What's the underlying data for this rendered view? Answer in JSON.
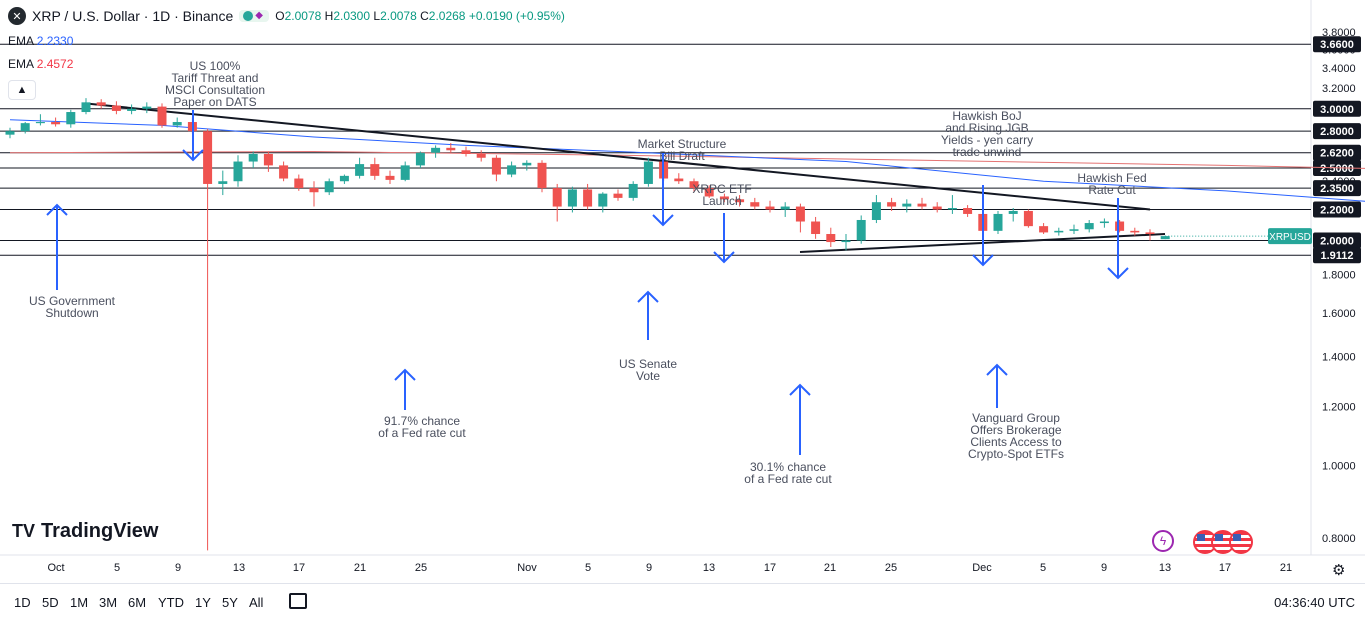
{
  "header": {
    "symbol_icon": "x-logo-icon",
    "title": "XRP / U.S. Dollar · 1D · Binance",
    "ohlc": {
      "o_label": "O",
      "o": "2.0078",
      "h_label": "H",
      "h": "2.0300",
      "l_label": "L",
      "l": "2.0078",
      "c_label": "C",
      "c": "2.0268",
      "change": "+0.0190 (+0.95%)"
    }
  },
  "indicators": [
    {
      "name": "EMA",
      "value": "2.2330",
      "color": "#2962ff"
    },
    {
      "name": "EMA",
      "value": "2.4572",
      "color": "#f23645"
    }
  ],
  "branding": {
    "logo_text": "TradingView"
  },
  "bottom_bar": {
    "ranges": [
      "1D",
      "5D",
      "1M",
      "3M",
      "6M",
      "YTD",
      "1Y",
      "5Y",
      "All"
    ],
    "time": "04:36:40 UTC"
  },
  "colors": {
    "up": "#26a69a",
    "down": "#ef5350",
    "ema_fast": "#2962ff",
    "ema_slow": "#e57373",
    "annotation": "#2962ff",
    "level": "#131722"
  },
  "chart_data": {
    "type": "candlestick",
    "symbol_label": "XRPUSD",
    "last_price": "2.0268",
    "y_axis": {
      "scale": "log",
      "ticks": [
        "3.8000",
        "3.6000",
        "3.4000",
        "3.2000",
        "3.0000",
        "2.8000",
        "2.6000",
        "2.4000",
        "2.2000",
        "2.0000",
        "1.8000",
        "1.6000",
        "1.4000",
        "1.2000",
        "1.0000",
        "0.8000"
      ],
      "ylim": [
        0.75,
        4.0
      ]
    },
    "x_axis": {
      "labels": [
        "Oct",
        "5",
        "9",
        "13",
        "17",
        "21",
        "25",
        "Nov",
        "5",
        "9",
        "13",
        "17",
        "21",
        "25",
        "Dec",
        "5",
        "9",
        "13",
        "17",
        "21"
      ]
    },
    "levels": [
      {
        "label": "3.6600",
        "value": 3.66
      },
      {
        "label": "3.0000",
        "value": 3.0
      },
      {
        "label": "2.8000",
        "value": 2.8
      },
      {
        "label": "2.6200",
        "value": 2.62
      },
      {
        "label": "2.5000",
        "value": 2.5
      },
      {
        "label": "2.3500",
        "value": 2.35
      },
      {
        "label": "2.2000",
        "value": 2.2
      },
      {
        "label": "2.0000",
        "value": 2.0
      },
      {
        "label": "1.9112",
        "value": 1.9112
      }
    ],
    "trendlines": [
      {
        "name": "descending",
        "from": {
          "x": "Oct 3",
          "y": 3.05
        },
        "to": {
          "x": "Dec 11",
          "y": 2.2
        }
      },
      {
        "name": "ascending",
        "from": {
          "x": "Nov 19",
          "y": 1.93
        },
        "to": {
          "x": "Dec 13",
          "y": 2.04
        }
      }
    ],
    "ema_fast": [
      [
        0,
        2.9
      ],
      [
        10,
        2.85
      ],
      [
        20,
        2.75
      ],
      [
        30,
        2.68
      ],
      [
        40,
        2.63
      ],
      [
        55,
        2.55
      ],
      [
        68,
        2.4
      ],
      [
        80,
        2.33
      ],
      [
        90,
        2.25
      ],
      [
        100,
        2.2
      ],
      [
        111,
        2.18
      ]
    ],
    "ema_slow": [
      [
        0,
        2.62
      ],
      [
        20,
        2.63
      ],
      [
        40,
        2.6
      ],
      [
        60,
        2.56
      ],
      [
        80,
        2.52
      ],
      [
        100,
        2.47
      ],
      [
        111,
        2.45
      ]
    ],
    "candles": [
      {
        "o": 2.77,
        "h": 2.83,
        "l": 2.74,
        "c": 2.8
      },
      {
        "o": 2.8,
        "h": 2.88,
        "l": 2.78,
        "c": 2.87
      },
      {
        "o": 2.87,
        "h": 2.95,
        "l": 2.85,
        "c": 2.88
      },
      {
        "o": 2.88,
        "h": 2.92,
        "l": 2.84,
        "c": 2.86
      },
      {
        "o": 2.86,
        "h": 2.99,
        "l": 2.83,
        "c": 2.97
      },
      {
        "o": 2.97,
        "h": 3.1,
        "l": 2.95,
        "c": 3.06
      },
      {
        "o": 3.06,
        "h": 3.09,
        "l": 3.0,
        "c": 3.03
      },
      {
        "o": 3.03,
        "h": 3.07,
        "l": 2.95,
        "c": 2.98
      },
      {
        "o": 2.98,
        "h": 3.04,
        "l": 2.95,
        "c": 3.0
      },
      {
        "o": 3.0,
        "h": 3.06,
        "l": 2.96,
        "c": 3.02
      },
      {
        "o": 3.02,
        "h": 3.05,
        "l": 2.83,
        "c": 2.85
      },
      {
        "o": 2.85,
        "h": 2.92,
        "l": 2.83,
        "c": 2.88
      },
      {
        "o": 2.88,
        "h": 2.92,
        "l": 2.78,
        "c": 2.8
      },
      {
        "o": 2.8,
        "h": 2.82,
        "l": 0.77,
        "c": 2.38
      },
      {
        "o": 2.38,
        "h": 2.48,
        "l": 2.3,
        "c": 2.4
      },
      {
        "o": 2.4,
        "h": 2.6,
        "l": 2.36,
        "c": 2.55
      },
      {
        "o": 2.55,
        "h": 2.63,
        "l": 2.5,
        "c": 2.61
      },
      {
        "o": 2.61,
        "h": 2.63,
        "l": 2.47,
        "c": 2.52
      },
      {
        "o": 2.52,
        "h": 2.55,
        "l": 2.4,
        "c": 2.42
      },
      {
        "o": 2.42,
        "h": 2.45,
        "l": 2.33,
        "c": 2.35
      },
      {
        "o": 2.35,
        "h": 2.4,
        "l": 2.22,
        "c": 2.32
      },
      {
        "o": 2.32,
        "h": 2.42,
        "l": 2.3,
        "c": 2.4
      },
      {
        "o": 2.4,
        "h": 2.45,
        "l": 2.38,
        "c": 2.44
      },
      {
        "o": 2.44,
        "h": 2.58,
        "l": 2.42,
        "c": 2.53
      },
      {
        "o": 2.53,
        "h": 2.58,
        "l": 2.41,
        "c": 2.44
      },
      {
        "o": 2.44,
        "h": 2.48,
        "l": 2.38,
        "c": 2.41
      },
      {
        "o": 2.41,
        "h": 2.55,
        "l": 2.4,
        "c": 2.52
      },
      {
        "o": 2.52,
        "h": 2.63,
        "l": 2.5,
        "c": 2.62
      },
      {
        "o": 2.62,
        "h": 2.68,
        "l": 2.58,
        "c": 2.66
      },
      {
        "o": 2.66,
        "h": 2.7,
        "l": 2.62,
        "c": 2.64
      },
      {
        "o": 2.64,
        "h": 2.67,
        "l": 2.59,
        "c": 2.61
      },
      {
        "o": 2.61,
        "h": 2.64,
        "l": 2.55,
        "c": 2.58
      },
      {
        "o": 2.58,
        "h": 2.6,
        "l": 2.4,
        "c": 2.45
      },
      {
        "o": 2.45,
        "h": 2.55,
        "l": 2.43,
        "c": 2.52
      },
      {
        "o": 2.52,
        "h": 2.56,
        "l": 2.48,
        "c": 2.54
      },
      {
        "o": 2.54,
        "h": 2.56,
        "l": 2.32,
        "c": 2.35
      },
      {
        "o": 2.35,
        "h": 2.38,
        "l": 2.12,
        "c": 2.22
      },
      {
        "o": 2.22,
        "h": 2.36,
        "l": 2.18,
        "c": 2.34
      },
      {
        "o": 2.34,
        "h": 2.38,
        "l": 2.2,
        "c": 2.22
      },
      {
        "o": 2.22,
        "h": 2.32,
        "l": 2.18,
        "c": 2.31
      },
      {
        "o": 2.31,
        "h": 2.34,
        "l": 2.26,
        "c": 2.28
      },
      {
        "o": 2.28,
        "h": 2.4,
        "l": 2.26,
        "c": 2.38
      },
      {
        "o": 2.38,
        "h": 2.58,
        "l": 2.36,
        "c": 2.55
      },
      {
        "o": 2.55,
        "h": 2.59,
        "l": 2.4,
        "c": 2.42
      },
      {
        "o": 2.42,
        "h": 2.46,
        "l": 2.38,
        "c": 2.4
      },
      {
        "o": 2.4,
        "h": 2.42,
        "l": 2.32,
        "c": 2.35
      },
      {
        "o": 2.35,
        "h": 2.37,
        "l": 2.28,
        "c": 2.29
      },
      {
        "o": 2.29,
        "h": 2.31,
        "l": 2.25,
        "c": 2.27
      },
      {
        "o": 2.27,
        "h": 2.3,
        "l": 2.22,
        "c": 2.25
      },
      {
        "o": 2.25,
        "h": 2.28,
        "l": 2.2,
        "c": 2.22
      },
      {
        "o": 2.22,
        "h": 2.26,
        "l": 2.18,
        "c": 2.2
      },
      {
        "o": 2.2,
        "h": 2.25,
        "l": 2.15,
        "c": 2.22
      },
      {
        "o": 2.22,
        "h": 2.24,
        "l": 2.05,
        "c": 2.12
      },
      {
        "o": 2.12,
        "h": 2.15,
        "l": 2.01,
        "c": 2.04
      },
      {
        "o": 2.04,
        "h": 2.08,
        "l": 1.96,
        "c": 1.99
      },
      {
        "o": 1.99,
        "h": 2.04,
        "l": 1.94,
        "c": 2.0
      },
      {
        "o": 2.0,
        "h": 2.16,
        "l": 1.98,
        "c": 2.13
      },
      {
        "o": 2.13,
        "h": 2.3,
        "l": 2.11,
        "c": 2.25
      },
      {
        "o": 2.25,
        "h": 2.28,
        "l": 2.19,
        "c": 2.22
      },
      {
        "o": 2.22,
        "h": 2.27,
        "l": 2.18,
        "c": 2.24
      },
      {
        "o": 2.24,
        "h": 2.28,
        "l": 2.2,
        "c": 2.22
      },
      {
        "o": 2.22,
        "h": 2.25,
        "l": 2.18,
        "c": 2.2
      },
      {
        "o": 2.2,
        "h": 2.3,
        "l": 2.17,
        "c": 2.21
      },
      {
        "o": 2.21,
        "h": 2.23,
        "l": 2.15,
        "c": 2.17
      },
      {
        "o": 2.17,
        "h": 2.18,
        "l": 2.03,
        "c": 2.06
      },
      {
        "o": 2.06,
        "h": 2.19,
        "l": 2.04,
        "c": 2.17
      },
      {
        "o": 2.17,
        "h": 2.21,
        "l": 2.12,
        "c": 2.19
      },
      {
        "o": 2.19,
        "h": 2.2,
        "l": 2.08,
        "c": 2.09
      },
      {
        "o": 2.09,
        "h": 2.11,
        "l": 2.04,
        "c": 2.05
      },
      {
        "o": 2.05,
        "h": 2.08,
        "l": 2.03,
        "c": 2.06
      },
      {
        "o": 2.06,
        "h": 2.1,
        "l": 2.04,
        "c": 2.07
      },
      {
        "o": 2.07,
        "h": 2.13,
        "l": 2.05,
        "c": 2.11
      },
      {
        "o": 2.11,
        "h": 2.14,
        "l": 2.08,
        "c": 2.12
      },
      {
        "o": 2.12,
        "h": 2.13,
        "l": 2.05,
        "c": 2.06
      },
      {
        "o": 2.06,
        "h": 2.08,
        "l": 2.03,
        "c": 2.05
      },
      {
        "o": 2.05,
        "h": 2.07,
        "l": 2.0,
        "c": 2.04
      },
      {
        "o": 2.0078,
        "h": 2.03,
        "l": 2.0078,
        "c": 2.0268
      }
    ],
    "annotations": [
      {
        "lines": [
          "US 100%",
          "Tariff Threat and",
          "MSCI Consultation",
          "Paper on DATS"
        ],
        "arrow": "down"
      },
      {
        "lines": [
          "US Government",
          "Shutdown"
        ],
        "arrow": "up"
      },
      {
        "lines": [
          "91.7% chance",
          "of a Fed rate cut"
        ],
        "arrow": "up"
      },
      {
        "lines": [
          "Market Structure",
          "Bill Draft"
        ],
        "arrow": "down"
      },
      {
        "lines": [
          "US Senate",
          "Vote"
        ],
        "arrow": "up"
      },
      {
        "lines": [
          "XRPC ETF",
          "Launch"
        ],
        "arrow": "down"
      },
      {
        "lines": [
          "30.1% chance",
          "of a Fed rate cut"
        ],
        "arrow": "up"
      },
      {
        "lines": [
          "Hawkish BoJ",
          "and Rising JGB",
          "Yields - yen carry",
          "trade unwind"
        ],
        "arrow": "down"
      },
      {
        "lines": [
          "Hawkish Fed",
          "Rate Cut"
        ],
        "arrow": "down"
      },
      {
        "lines": [
          "Vanguard Group",
          "Offers Brokerage",
          "Clients Access to",
          "Crypto-Spot ETFs"
        ],
        "arrow": "up"
      }
    ]
  }
}
